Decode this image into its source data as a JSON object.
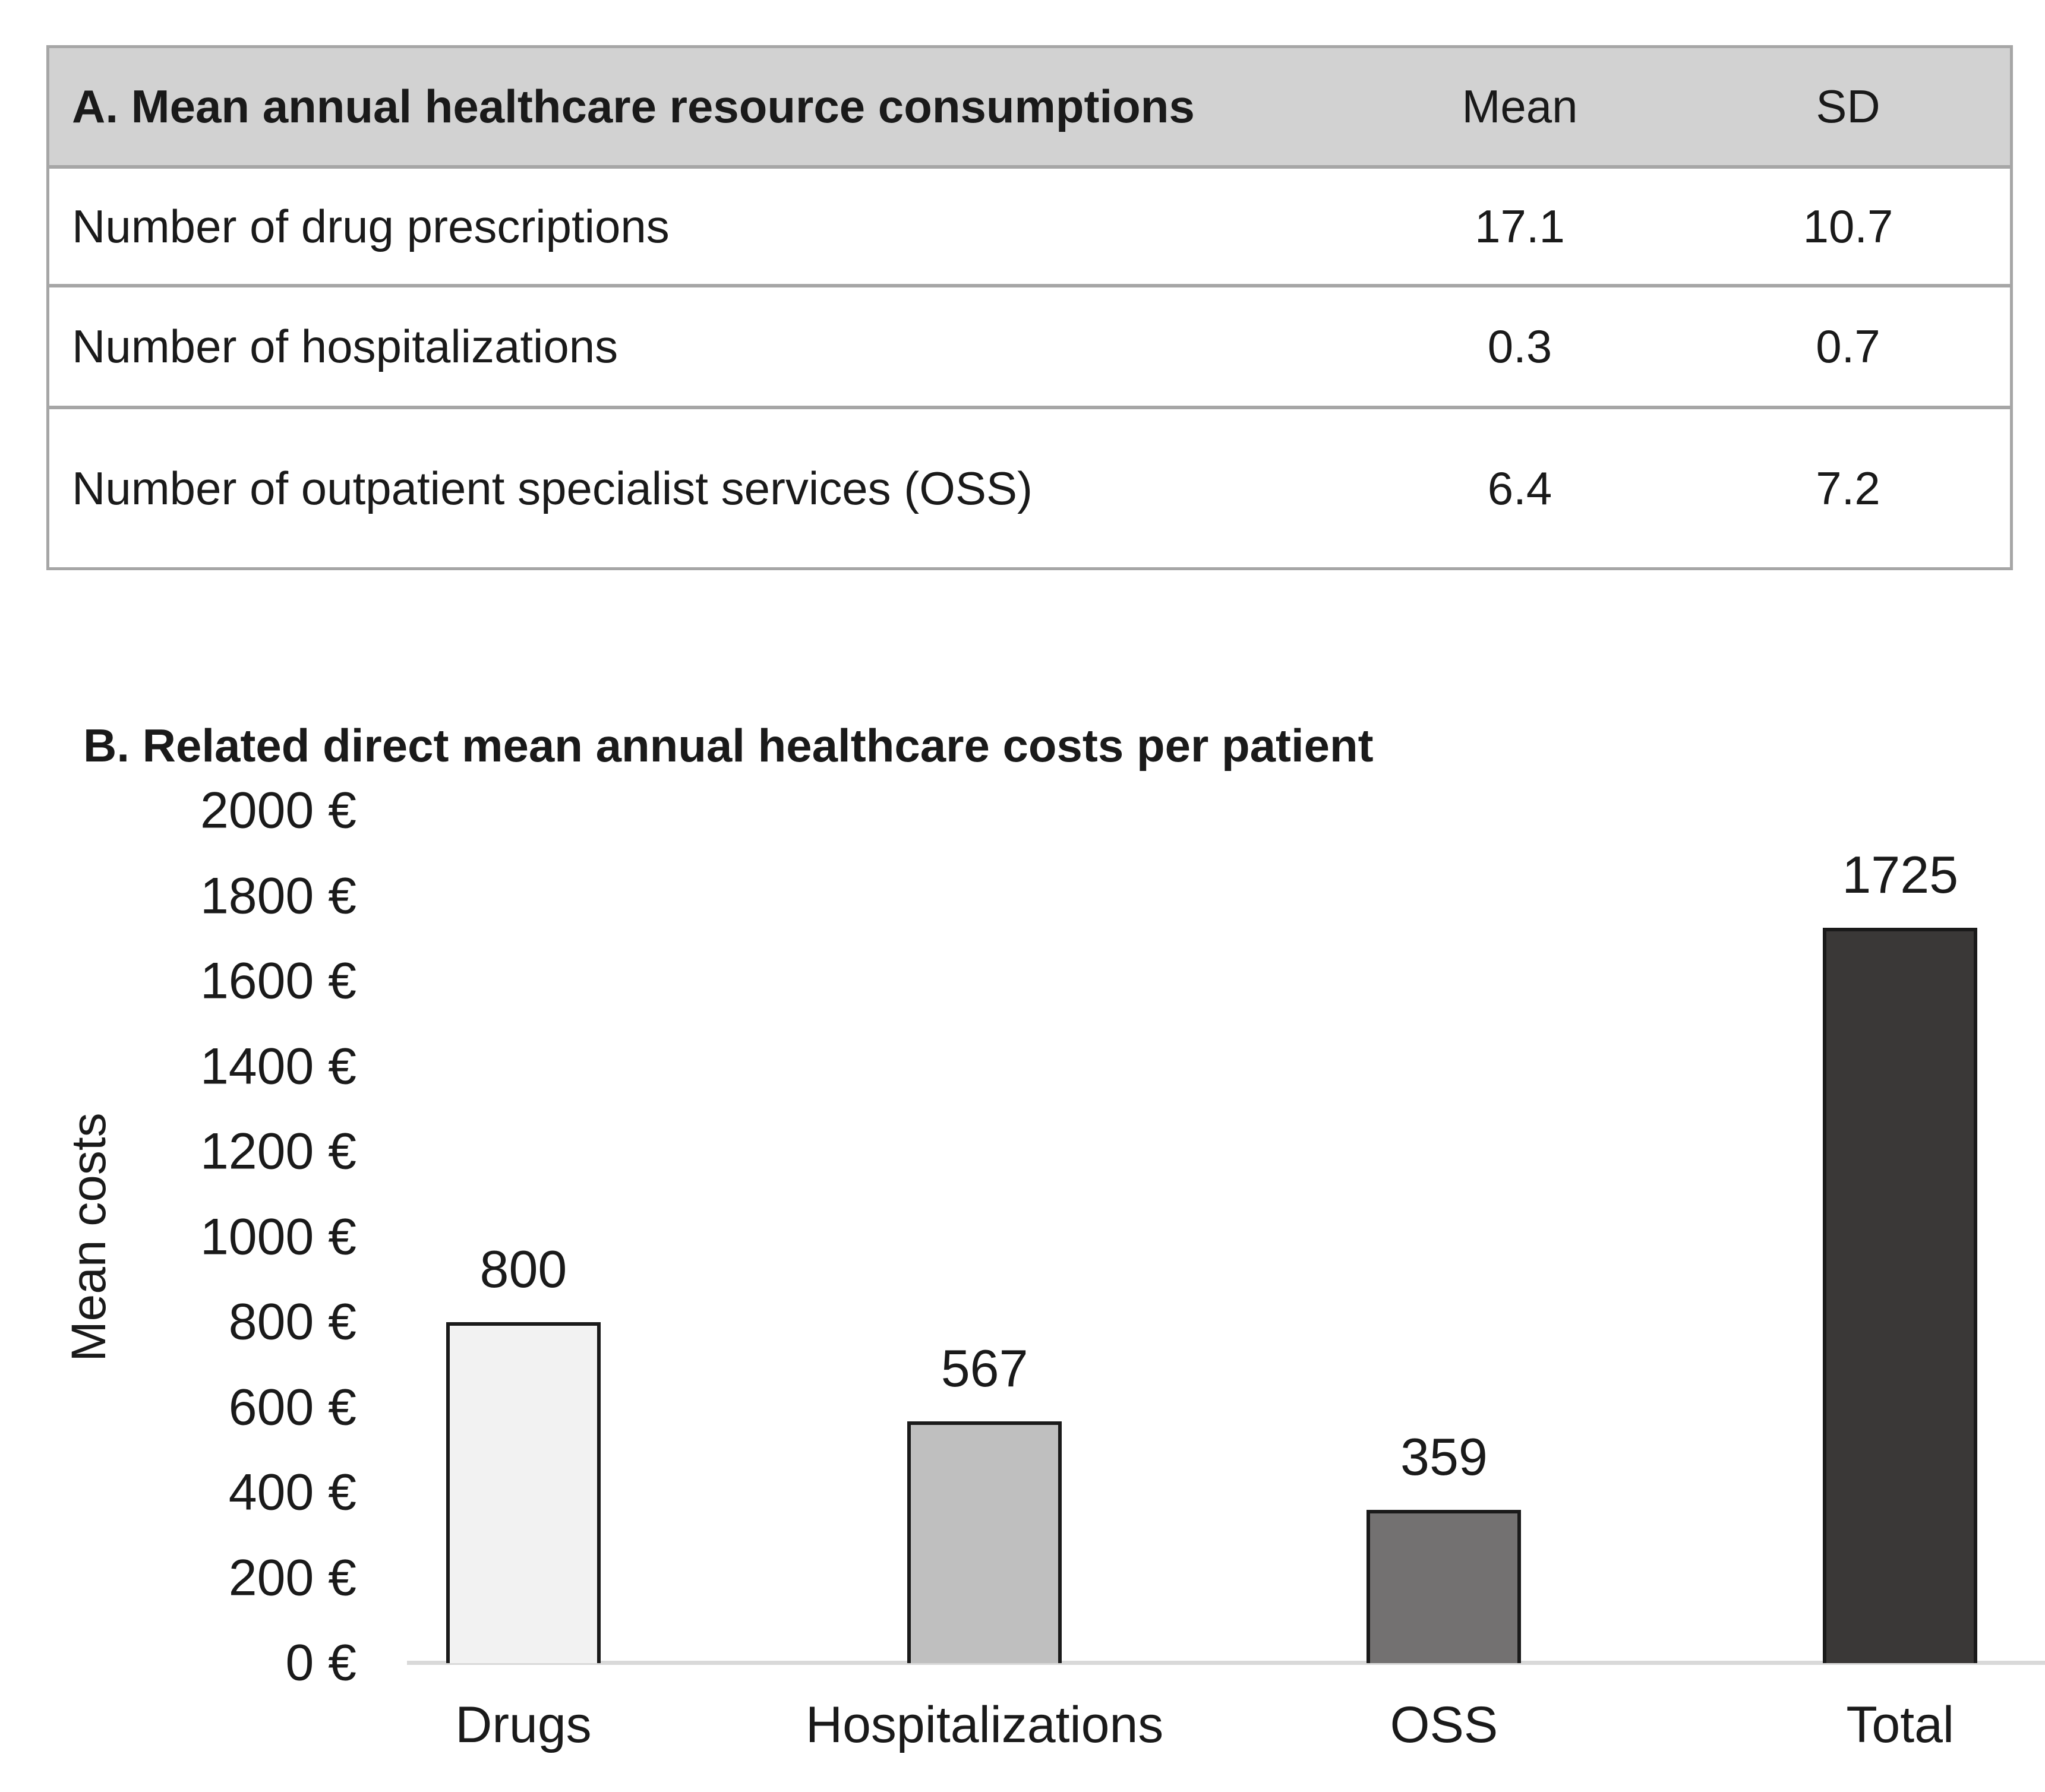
{
  "panel_a": {
    "title": "A. Mean annual healthcare resource consumptions",
    "columns": [
      "Mean",
      "SD"
    ],
    "rows": [
      {
        "label": "Number of drug prescriptions",
        "mean": "17.1",
        "sd": "10.7"
      },
      {
        "label": "Number of hospitalizations",
        "mean": "0.3",
        "sd": "0.7"
      },
      {
        "label": "Number of outpatient specialist services (OSS)",
        "mean": "6.4",
        "sd": "7.2"
      }
    ]
  },
  "panel_b": {
    "title": "B. Related direct mean annual healthcare costs per patient"
  },
  "chart_data": {
    "type": "bar",
    "title": "B. Related direct mean annual healthcare costs per patient",
    "categories": [
      "Drugs",
      "Hospitalizations",
      "OSS",
      "Total"
    ],
    "values": [
      800,
      567,
      359,
      1725
    ],
    "data_labels": [
      "800",
      "567",
      "359",
      "1725"
    ],
    "bar_colors": [
      "#f2f2f2",
      "#bfbfbf",
      "#737171",
      "#3a3837"
    ],
    "xlabel": "",
    "ylabel": "Mean costs",
    "ylim": [
      0,
      2000
    ],
    "ytick_step": 200,
    "yticks": [
      "2000 €",
      "1800 €",
      "1600 €",
      "1400 €",
      "1200 €",
      "1000 €",
      "800 €",
      "600 €",
      "400 €",
      "200 €",
      "0 €"
    ],
    "grid": false,
    "legend": false
  },
  "colors": {
    "table_header_bg": "#d2d2d2",
    "table_border": "#a6a6a6",
    "axis_line": "#d9d9d9",
    "bar_border": "#1a1a1a",
    "text": "#1a1a1a",
    "page_bg": "#ffffff"
  }
}
